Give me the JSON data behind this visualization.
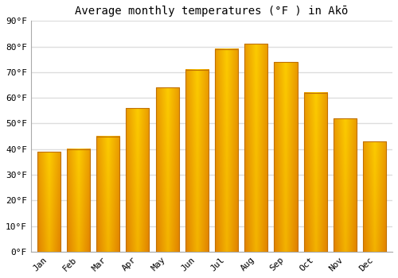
{
  "title": "Average monthly temperatures (°F ) in Akō",
  "months": [
    "Jan",
    "Feb",
    "Mar",
    "Apr",
    "May",
    "Jun",
    "Jul",
    "Aug",
    "Sep",
    "Oct",
    "Nov",
    "Dec"
  ],
  "values": [
    39,
    40,
    45,
    56,
    64,
    71,
    79,
    81,
    74,
    62,
    52,
    43
  ],
  "ylim": [
    0,
    90
  ],
  "yticks": [
    0,
    10,
    20,
    30,
    40,
    50,
    60,
    70,
    80,
    90
  ],
  "ytick_labels": [
    "0°F",
    "10°F",
    "20°F",
    "30°F",
    "40°F",
    "50°F",
    "60°F",
    "70°F",
    "80°F",
    "90°F"
  ],
  "bar_color_center": "#FFD000",
  "bar_color_edge": "#E08000",
  "bar_edge_color": "#C07000",
  "background_color": "#ffffff",
  "plot_bg_color": "#ffffff",
  "grid_color": "#dddddd",
  "title_fontsize": 10,
  "tick_fontsize": 8,
  "bar_width": 0.78
}
